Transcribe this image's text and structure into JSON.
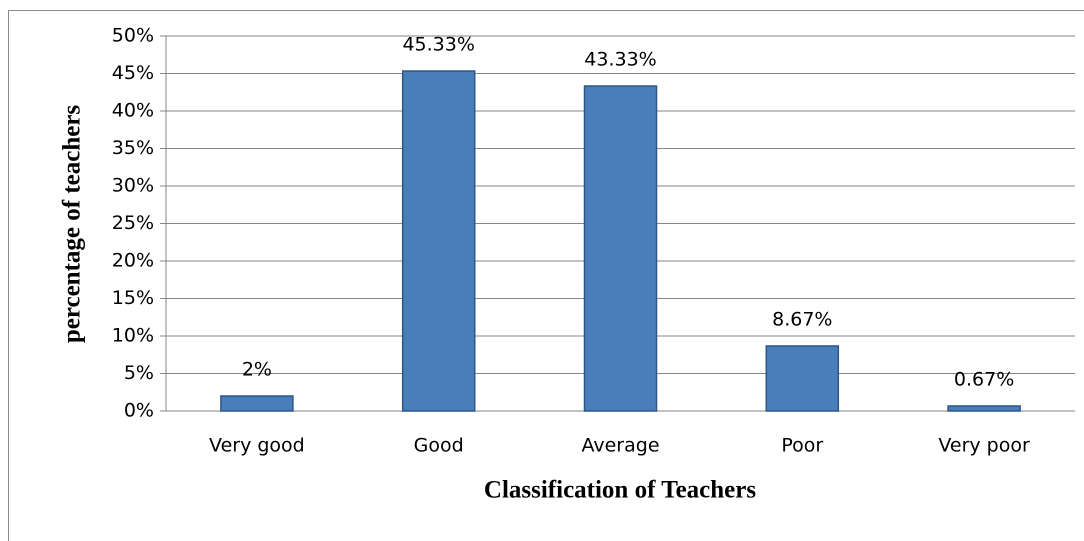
{
  "chart_data": {
    "type": "bar",
    "x_label": "Classification of Teachers",
    "y_label": "percentage of teachers",
    "categories": [
      "Very good",
      "Good",
      "Average",
      "Poor",
      "Very poor"
    ],
    "values": [
      2,
      45.33,
      43.33,
      8.67,
      0.67
    ],
    "value_labels": [
      "2%",
      "45.33%",
      "43.33%",
      "8.67%",
      "0.67%"
    ],
    "color": "#4a7ebb",
    "ylim": [
      0,
      50
    ],
    "yticks": [
      {
        "value": 0,
        "label": "0%"
      },
      {
        "value": 5,
        "label": "5%"
      },
      {
        "value": 10,
        "label": "10%"
      },
      {
        "value": 15,
        "label": "15%"
      },
      {
        "value": 20,
        "label": "20%"
      },
      {
        "value": 25,
        "label": "25%"
      },
      {
        "value": 30,
        "label": "30%"
      },
      {
        "value": 35,
        "label": "35%"
      },
      {
        "value": 40,
        "label": "40%"
      },
      {
        "value": 45,
        "label": "45%"
      },
      {
        "value": 50,
        "label": "50%"
      }
    ],
    "grid": true
  }
}
